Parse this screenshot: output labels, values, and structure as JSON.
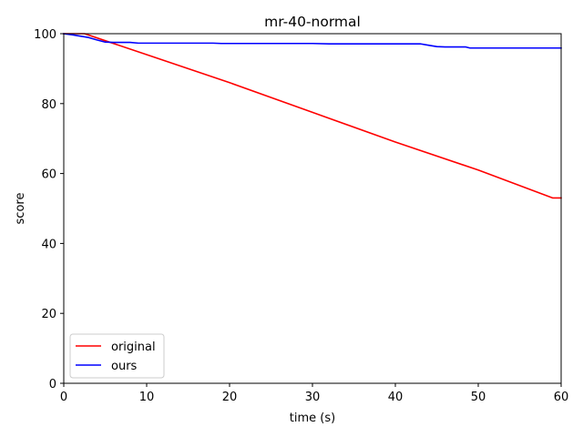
{
  "chart_data": {
    "type": "line",
    "title": "mr-40-normal",
    "xlabel": "time (s)",
    "ylabel": "score",
    "xlim": [
      0,
      60
    ],
    "ylim": [
      0,
      100
    ],
    "xticks": [
      0,
      10,
      20,
      30,
      40,
      50,
      60
    ],
    "yticks": [
      0,
      20,
      40,
      60,
      80,
      100
    ],
    "xtick_labels": [
      "0",
      "10",
      "20",
      "30",
      "40",
      "50",
      "60"
    ],
    "ytick_labels": [
      "0",
      "20",
      "40",
      "60",
      "80",
      "100"
    ],
    "grid": false,
    "legend_position": "lower-left",
    "series": [
      {
        "name": "original",
        "color": "#ff0000",
        "x": [
          0,
          2.5,
          3,
          5,
          10,
          20,
          30,
          40,
          50,
          59,
          60
        ],
        "y": [
          100,
          100,
          99.6,
          98.0,
          94.0,
          86.0,
          77.5,
          69.0,
          61.0,
          53.0,
          53.0
        ]
      },
      {
        "name": "ours",
        "color": "#0000ff",
        "x": [
          0,
          1,
          2,
          3,
          4,
          5,
          6,
          8,
          9,
          10,
          15,
          18,
          19,
          20,
          25,
          30,
          32,
          35,
          40,
          43,
          44,
          45,
          46,
          48,
          48.5,
          49,
          50,
          55,
          60
        ],
        "y": [
          100,
          99.7,
          99.3,
          98.9,
          98.2,
          97.6,
          97.5,
          97.5,
          97.3,
          97.3,
          97.3,
          97.3,
          97.2,
          97.2,
          97.2,
          97.2,
          97.1,
          97.1,
          97.1,
          97.1,
          96.7,
          96.3,
          96.2,
          96.2,
          96.2,
          95.9,
          95.9,
          95.9,
          95.9
        ]
      }
    ]
  }
}
